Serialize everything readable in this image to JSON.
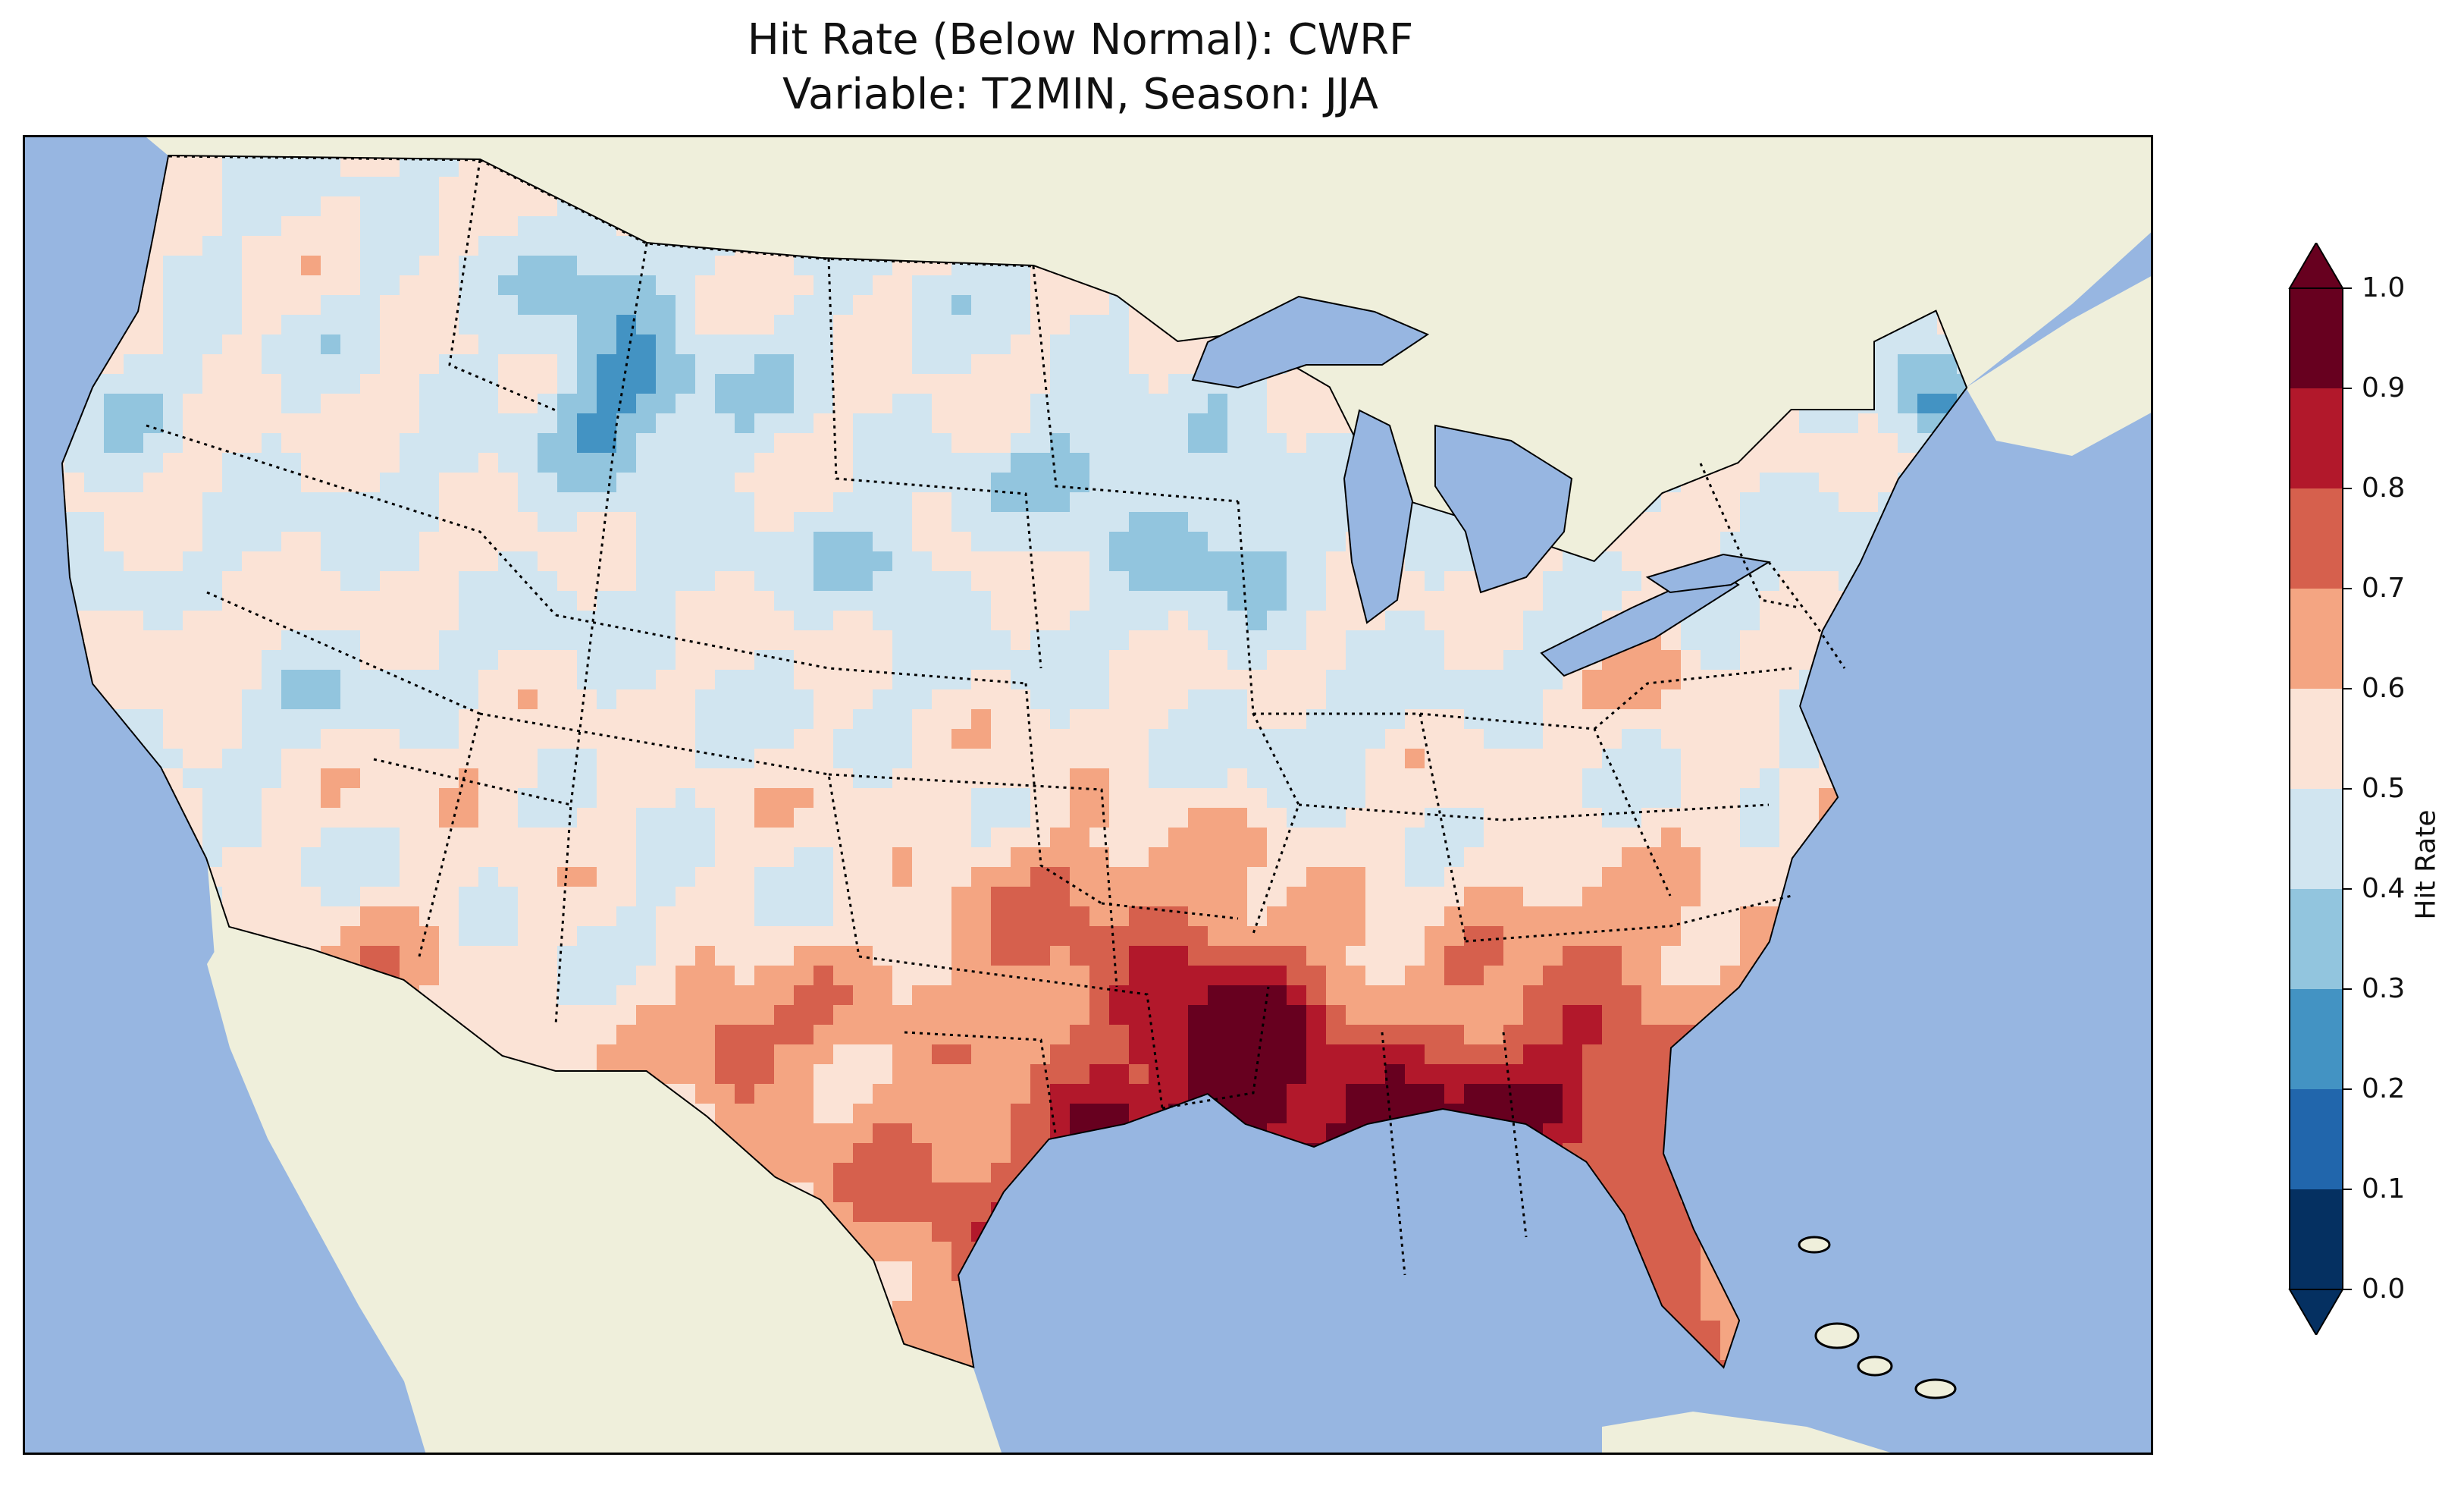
{
  "title": {
    "line1": "Hit Rate (Below Normal): CWRF",
    "line2": "Variable: T2MIN, Season: JJA"
  },
  "map": {
    "ocean_color": "#97b6e1",
    "land_color": "#efefdb",
    "lake_color": "#97b6e1",
    "projection": "Lambert Conformal (CONUS)"
  },
  "colorbar": {
    "label": "Hit Rate",
    "extend": "both",
    "ticks": [
      "0.0",
      "0.1",
      "0.2",
      "0.3",
      "0.4",
      "0.5",
      "0.6",
      "0.7",
      "0.8",
      "0.9",
      "1.0"
    ],
    "colors": [
      "#053061",
      "#2166ac",
      "#4393c3",
      "#92c5de",
      "#d1e5f0",
      "#fbe3d6",
      "#f4a582",
      "#d6604d",
      "#b2182b",
      "#67001f"
    ],
    "under_color": "#053061",
    "over_color": "#67001f"
  },
  "field": {
    "variable": "T2MIN",
    "season": "JJA",
    "model": "CWRF",
    "metric": "Hit Rate (Below Normal)"
  }
}
